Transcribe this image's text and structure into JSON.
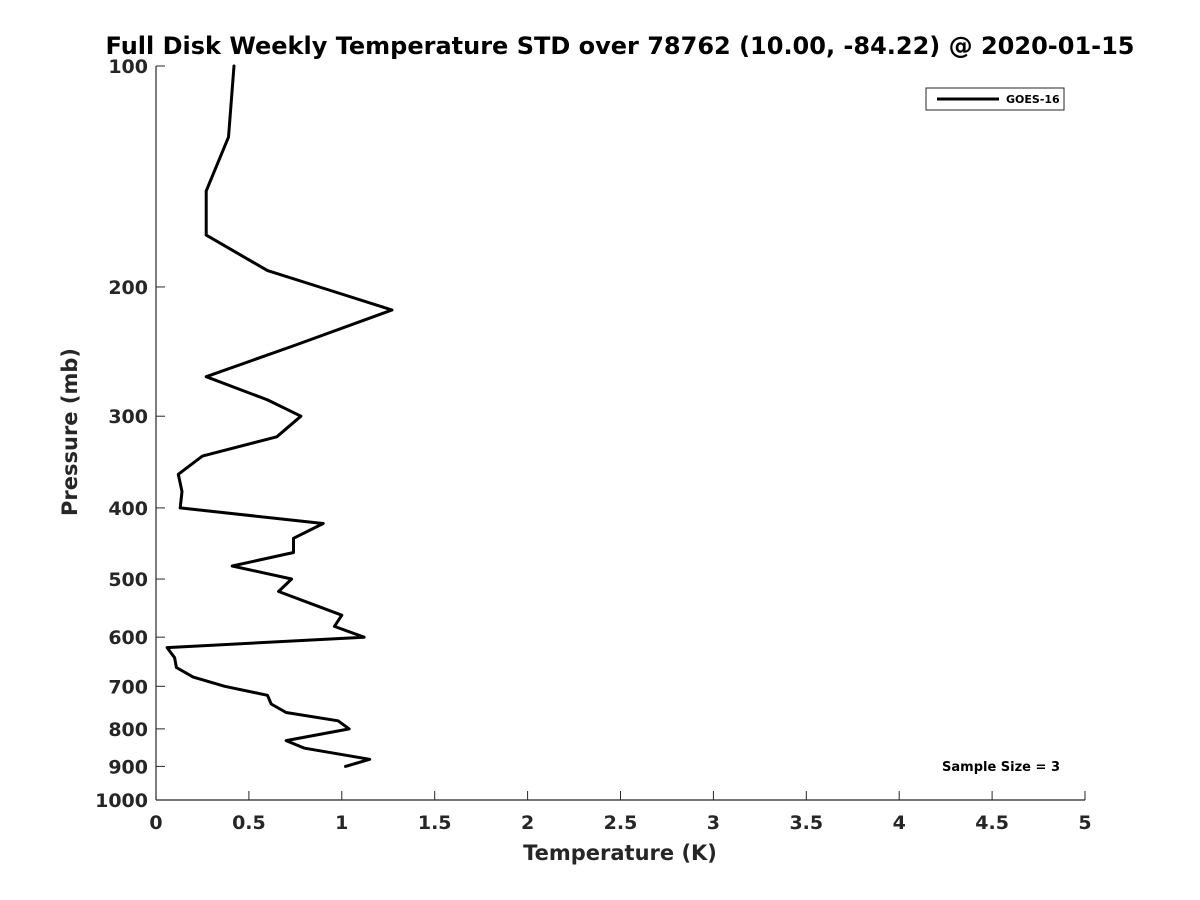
{
  "chart_data": {
    "type": "line",
    "title": "Full Disk Weekly Temperature STD over 78762 (10.00, -84.22) @ 2020-01-15",
    "xlabel": "Temperature (K)",
    "ylabel": "Pressure (mb)",
    "xlim": [
      0,
      5
    ],
    "ylim": [
      100,
      1000
    ],
    "y_scale": "log",
    "y_reversed": true,
    "xticks": [
      0,
      0.5,
      1,
      1.5,
      2,
      2.5,
      3,
      3.5,
      4,
      4.5,
      5
    ],
    "xtick_labels": [
      "0",
      "0.5",
      "1",
      "1.5",
      "2",
      "2.5",
      "3",
      "3.5",
      "4",
      "4.5",
      "5"
    ],
    "yticks": [
      100,
      200,
      300,
      400,
      500,
      600,
      700,
      800,
      900,
      1000
    ],
    "ytick_labels": [
      "100",
      "200",
      "300",
      "400",
      "500",
      "600",
      "700",
      "800",
      "900",
      "1000"
    ],
    "grid": false,
    "legend": {
      "position": "top-right"
    },
    "annotation": "Sample Size = 3",
    "series": [
      {
        "name": "GOES-16",
        "color": "#000000",
        "points": [
          {
            "x": 0.42,
            "y": 100
          },
          {
            "x": 0.39,
            "y": 125
          },
          {
            "x": 0.27,
            "y": 148
          },
          {
            "x": 0.27,
            "y": 170
          },
          {
            "x": 0.6,
            "y": 190
          },
          {
            "x": 0.88,
            "y": 200
          },
          {
            "x": 1.27,
            "y": 215
          },
          {
            "x": 0.75,
            "y": 240
          },
          {
            "x": 0.27,
            "y": 265
          },
          {
            "x": 0.6,
            "y": 285
          },
          {
            "x": 0.78,
            "y": 300
          },
          {
            "x": 0.65,
            "y": 320
          },
          {
            "x": 0.25,
            "y": 340
          },
          {
            "x": 0.12,
            "y": 360
          },
          {
            "x": 0.14,
            "y": 380
          },
          {
            "x": 0.13,
            "y": 400
          },
          {
            "x": 0.9,
            "y": 420
          },
          {
            "x": 0.74,
            "y": 440
          },
          {
            "x": 0.74,
            "y": 460
          },
          {
            "x": 0.41,
            "y": 480
          },
          {
            "x": 0.73,
            "y": 500
          },
          {
            "x": 0.66,
            "y": 520
          },
          {
            "x": 1.0,
            "y": 560
          },
          {
            "x": 0.96,
            "y": 580
          },
          {
            "x": 1.12,
            "y": 600
          },
          {
            "x": 0.06,
            "y": 620
          },
          {
            "x": 0.1,
            "y": 640
          },
          {
            "x": 0.11,
            "y": 660
          },
          {
            "x": 0.2,
            "y": 680
          },
          {
            "x": 0.37,
            "y": 700
          },
          {
            "x": 0.6,
            "y": 720
          },
          {
            "x": 0.62,
            "y": 740
          },
          {
            "x": 0.7,
            "y": 760
          },
          {
            "x": 0.98,
            "y": 780
          },
          {
            "x": 1.04,
            "y": 800
          },
          {
            "x": 0.7,
            "y": 830
          },
          {
            "x": 0.8,
            "y": 850
          },
          {
            "x": 1.15,
            "y": 880
          },
          {
            "x": 1.02,
            "y": 900
          }
        ]
      }
    ]
  }
}
